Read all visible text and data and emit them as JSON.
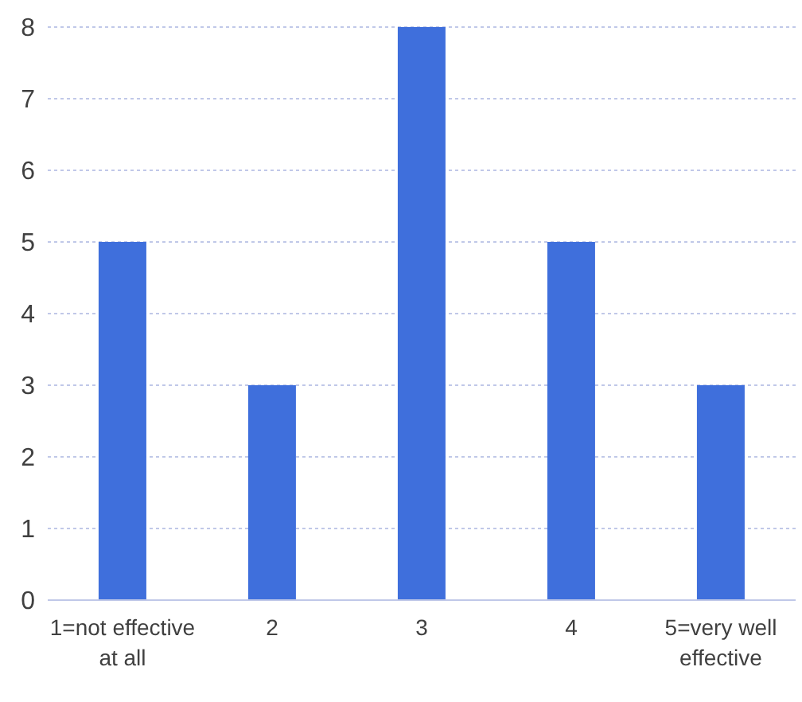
{
  "chart_data": {
    "type": "bar",
    "categories": [
      "1=not effective at all",
      "2",
      "3",
      "4",
      "5=very well effective"
    ],
    "values": [
      5,
      3,
      8,
      5,
      3
    ],
    "color": "#3f6fdc",
    "ylim": [
      0,
      8
    ],
    "yticks": [
      0,
      1,
      2,
      3,
      4,
      5,
      6,
      7,
      8
    ],
    "grid": "y"
  }
}
